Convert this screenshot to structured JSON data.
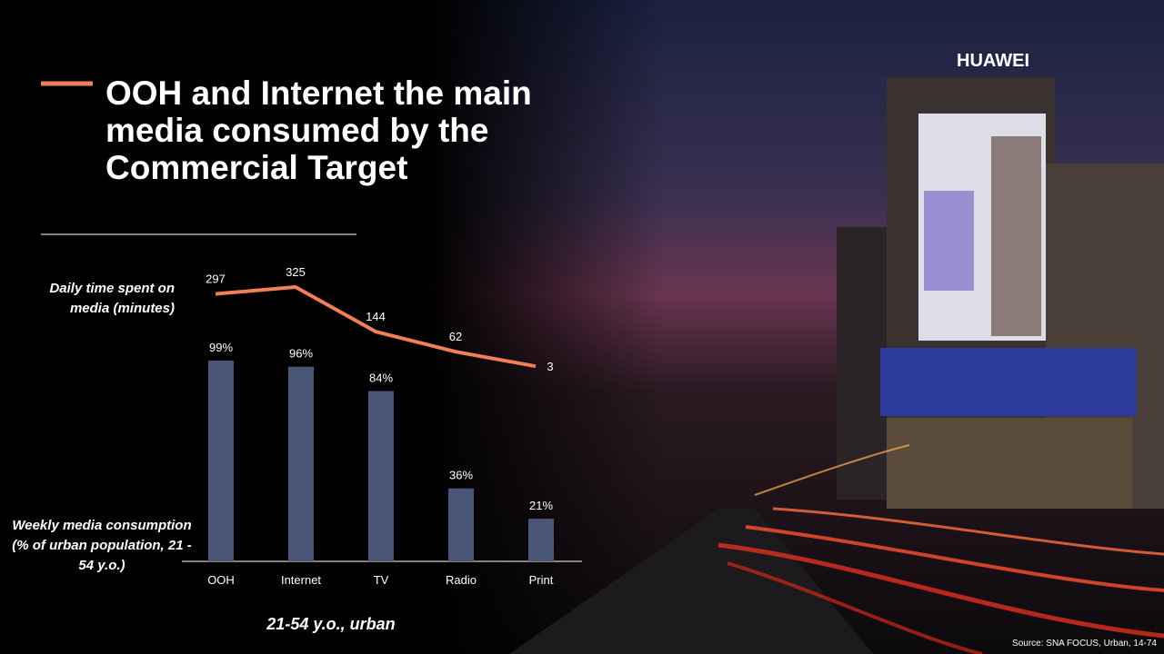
{
  "title": "OOH and Internet the main media consumed by the Commercial Target",
  "brand": "HUAWEI",
  "source": "Source: SNA FOCUS, Urban, 14-74",
  "chart_data": {
    "type": "bar",
    "categories": [
      "OOH",
      "Internet",
      "TV",
      "Radio",
      "Print"
    ],
    "x_label": "21-54 y.o., urban",
    "series": [
      {
        "name": "Weekly media consumption (% of urban population, 21 - 54 y.o.)",
        "type": "bar",
        "color": "#4a5676",
        "values": [
          99,
          96,
          84,
          36,
          21
        ],
        "value_labels": [
          "99%",
          "96%",
          "84%",
          "36%",
          "21%"
        ]
      },
      {
        "name": "Daily time spent on media (minutes)",
        "type": "line",
        "color": "#f07f5a",
        "values": [
          297,
          325,
          144,
          62,
          3
        ]
      }
    ]
  }
}
